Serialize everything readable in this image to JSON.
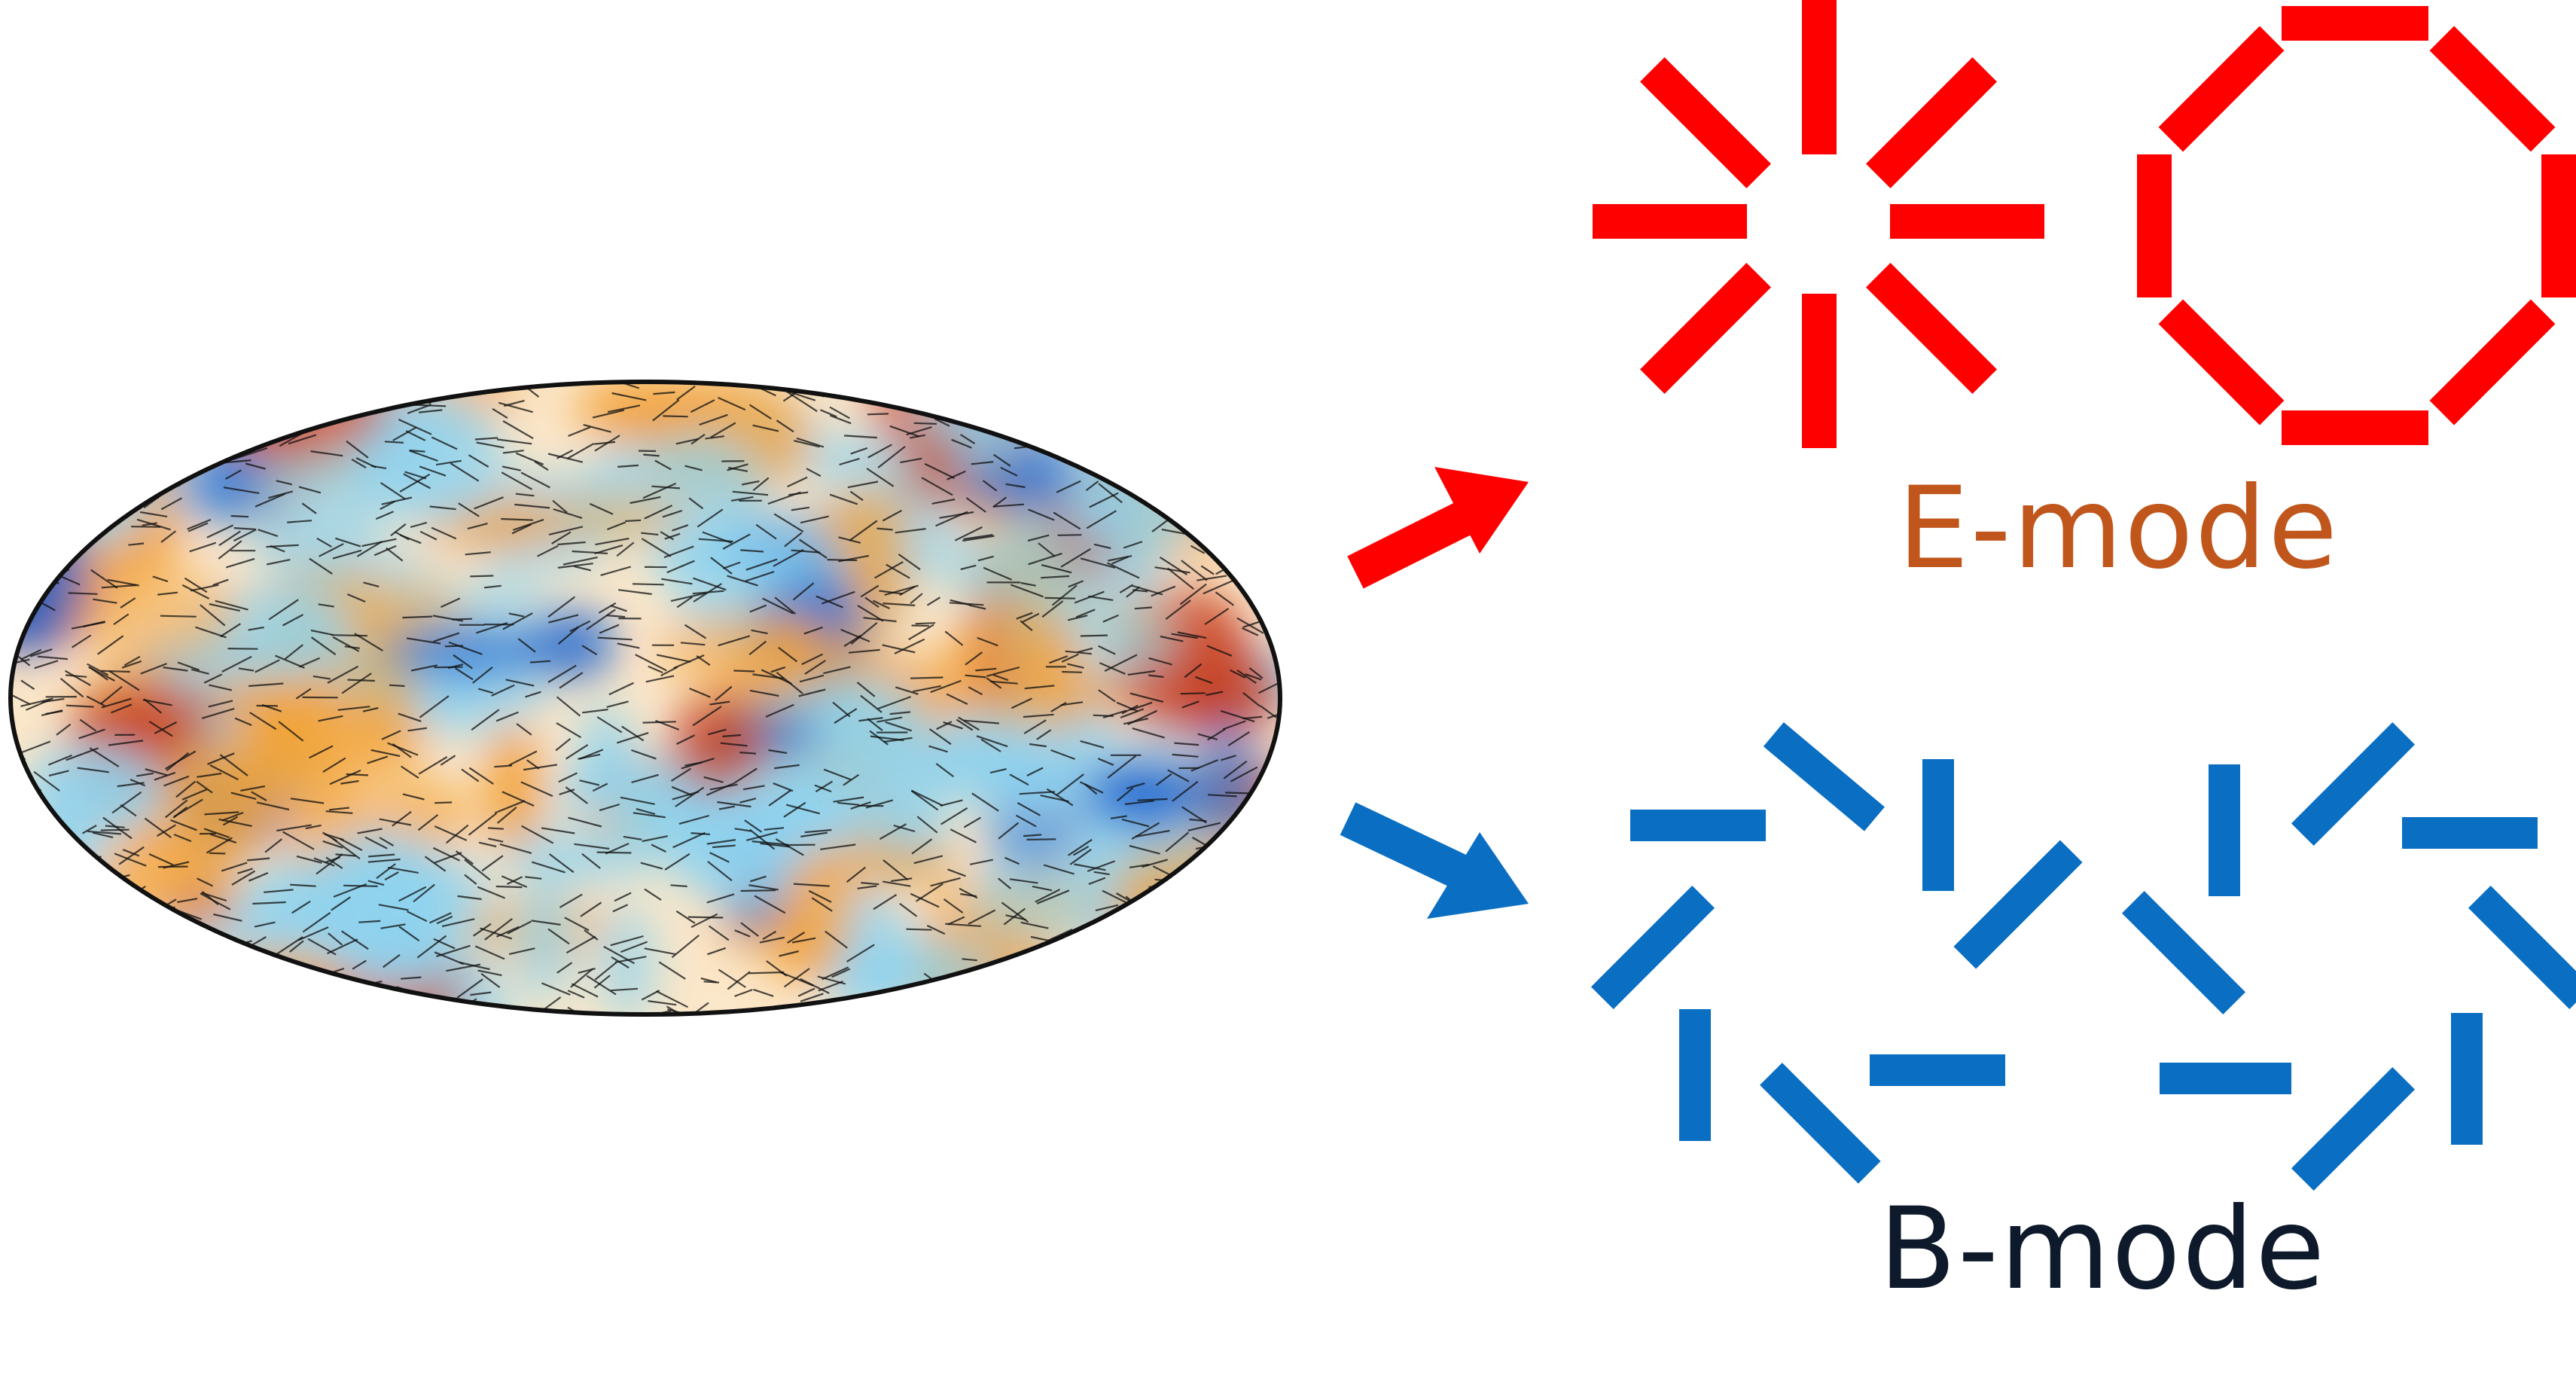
{
  "e_mode": {
    "label": "E-mode",
    "color": "#ff0000",
    "label_color": "#c0561b"
  },
  "b_mode": {
    "label": "B-mode",
    "color": "#0a6fc2",
    "label_color": "#0e1a2b"
  },
  "sky_map": {
    "colors": {
      "base": "#fbe7c9",
      "warm": "#f2a33a",
      "hot": "#c8401e",
      "cool": "#8fd3ef",
      "cold": "#1e66cf",
      "outline": "#111111"
    }
  },
  "arrows": [
    {
      "target": "e_mode",
      "color": "#ff0000"
    },
    {
      "target": "b_mode",
      "color": "#0a6fc2"
    }
  ]
}
